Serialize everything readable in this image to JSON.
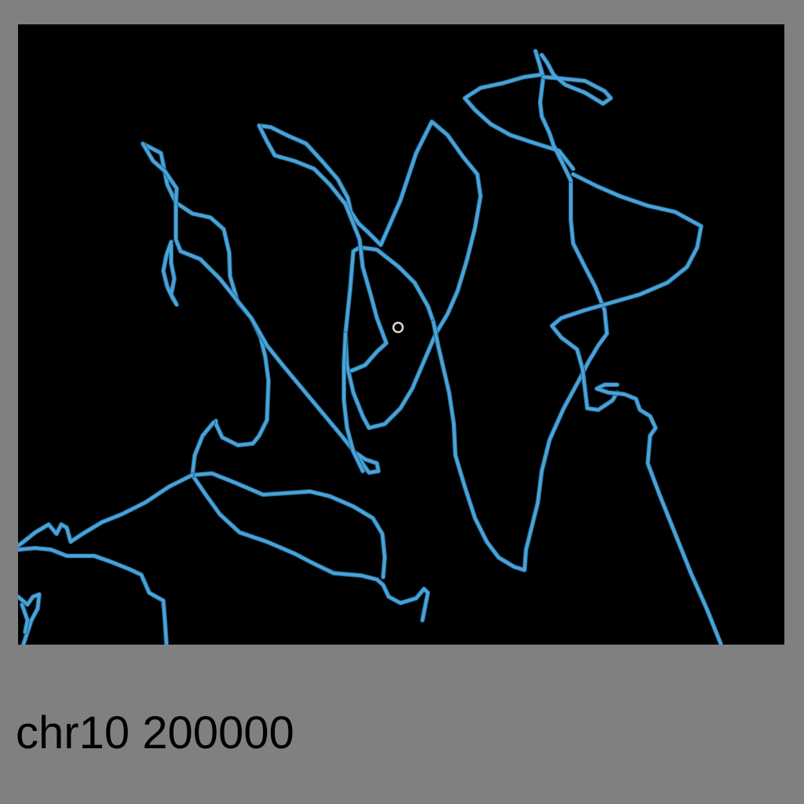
{
  "caption": "chr10 200000",
  "colors": {
    "page_background": "#808080",
    "viewport_background": "#000000",
    "strand": "#4aa3d8",
    "strand_shadow": "#1f5f86",
    "marker": "#d9d9d9",
    "caption_text": "#000000"
  },
  "viewport": {
    "content": "3d-chromatin-strand-rendering",
    "marker": "center-ring-marker"
  }
}
